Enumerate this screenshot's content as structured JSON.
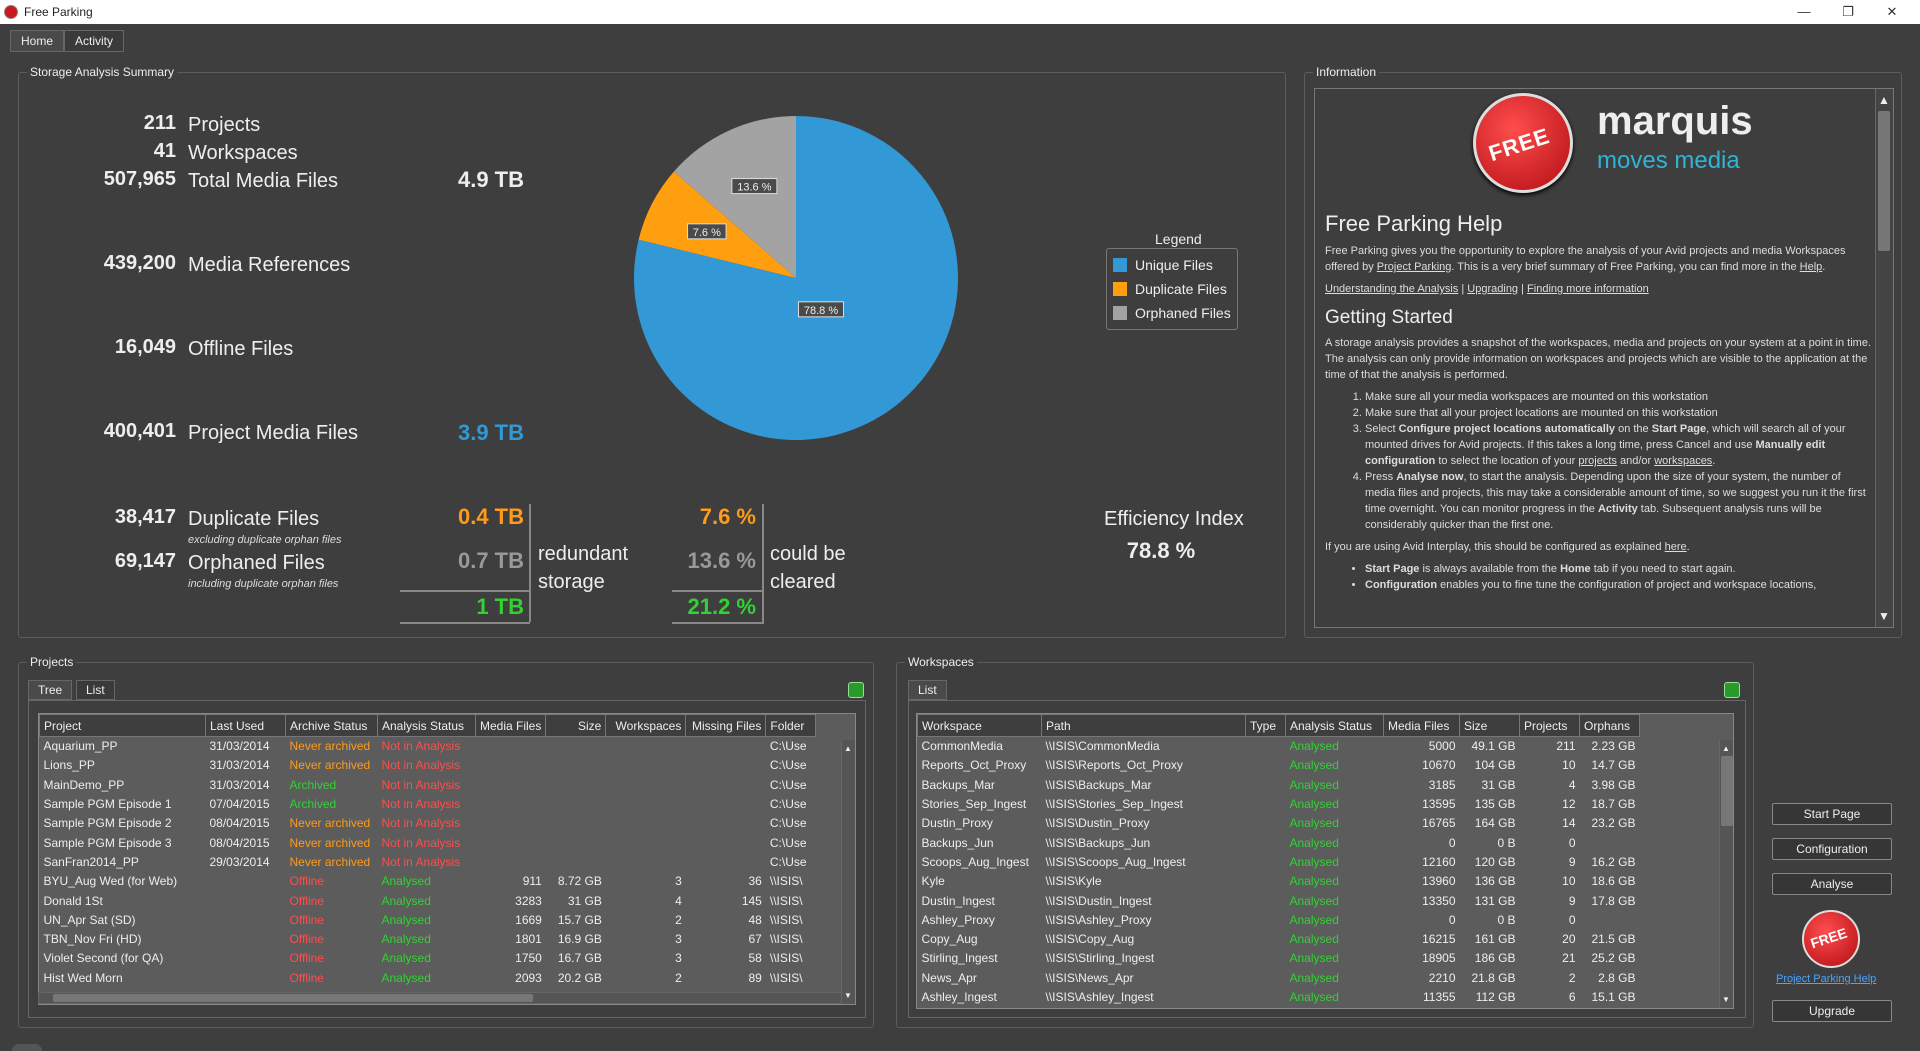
{
  "window": {
    "title": "Free Parking",
    "minimize": "—",
    "maximize": "❐",
    "close": "✕"
  },
  "tabs": [
    "Home",
    "Activity"
  ],
  "summary": {
    "group_label": "Storage Analysis Summary",
    "projects": {
      "value": "211",
      "label": "Projects"
    },
    "workspaces": {
      "value": "41",
      "label": "Workspaces"
    },
    "total_media": {
      "value": "507,965",
      "label": "Total Media Files",
      "size": "4.9 TB"
    },
    "media_refs": {
      "value": "439,200",
      "label": "Media References"
    },
    "offline": {
      "value": "16,049",
      "label": "Offline Files"
    },
    "project_media": {
      "value": "400,401",
      "label": "Project Media Files",
      "size": "3.9 TB"
    },
    "duplicate": {
      "value": "38,417",
      "label": "Duplicate Files",
      "note": "excluding duplicate orphan files",
      "size": "0.4 TB",
      "pct": "7.6 %"
    },
    "orphaned": {
      "value": "69,147",
      "label": "Orphaned Files",
      "note": "including duplicate orphan files",
      "size": "0.7 TB",
      "pct": "13.6 %"
    },
    "redundant_total": "1 TB",
    "redundant_label": "redundant storage",
    "cleared_total": "21.2 %",
    "cleared_label": "could be cleared",
    "efficiency_label": "Efficiency Index",
    "efficiency_value": "78.8 %"
  },
  "chart_data": {
    "type": "pie",
    "slices": [
      {
        "name": "Unique Files",
        "value": 78.8,
        "label": "78.8 %",
        "color": "#3399d6"
      },
      {
        "name": "Duplicate Files",
        "value": 7.6,
        "label": "7.6 %",
        "color": "#ff9e0f"
      },
      {
        "name": "Orphaned Files",
        "value": 13.6,
        "label": "13.6 %",
        "color": "#a3a3a3"
      }
    ],
    "legend_title": "Legend",
    "legend": [
      "Unique Files",
      "Duplicate Files",
      "Orphaned Files"
    ]
  },
  "info": {
    "group_label": "Information",
    "logo_badge": "FREE",
    "logo_brand": "marquis",
    "logo_tagline": "moves media",
    "help_title": "Free Parking Help",
    "intro_1": "Free Parking gives you the opportunity to explore the analysis of your Avid projects and media Workspaces offered by",
    "intro_link_1": "Project Parking",
    "intro_2": ". This is a very brief summary of Free Parking, you can find more in the",
    "intro_link_2": "Help",
    "intro_3": ".",
    "links": [
      "Understanding the Analysis",
      "Upgrading",
      "Finding more information"
    ],
    "gs_title": "Getting Started",
    "gs_text": "A storage analysis provides a snapshot of the workspaces, media and projects on your system at a point in time. The analysis can only provide information on workspaces and projects which are visible to the application at the time of that the analysis is performed.",
    "step1": "Make sure all your media workspaces are mounted on this workstation",
    "step2": "Make sure that all your project locations are mounted on this workstation",
    "step3_a": "Select",
    "step3_b": "Configure project locations automatically",
    "step3_c": "on the",
    "step3_d": "Start Page",
    "step3_e": ", which will search all of your mounted drives for Avid projects. If this takes a long time, press Cancel and use",
    "step3_f": "Manually edit configuration",
    "step3_g": "to select the location of your",
    "step3_h": "projects",
    "step3_i": "and/or",
    "step3_j": "workspaces",
    "step3_k": ".",
    "step4_a": "Press",
    "step4_b": "Analyse now",
    "step4_c": ", to start the analysis. Depending upon the size of your system, the number of media files and projects, this may take a considerable amount of time, so we suggest you run it the first time overnight. You can monitor progress in the",
    "step4_d": "Activity",
    "step4_e": "tab. Subsequent analysis runs will be considerably quicker than the first one.",
    "interplay_a": "If you are using Avid Interplay, this should be configured as explained",
    "interplay_link": "here",
    "interplay_b": ".",
    "bullet1_a": "Start Page",
    "bullet1_b": "is always available from the",
    "bullet1_c": "Home",
    "bullet1_d": "tab if you need to start again.",
    "bullet2_a": "Configuration",
    "bullet2_b": "enables you to fine tune the configuration of project and workspace locations,"
  },
  "projects": {
    "group_label": "Projects",
    "tabs": [
      "Tree",
      "List"
    ],
    "columns": [
      "Project",
      "Last Used",
      "Archive Status",
      "Analysis Status",
      "Media Files",
      "Size",
      "Workspaces",
      "Missing Files",
      "Folder"
    ],
    "rows": [
      [
        "Aquarium_PP",
        "31/03/2014",
        "Never archived",
        "Not in Analysis",
        "",
        "",
        "",
        "",
        "C:\\Use"
      ],
      [
        "Lions_PP",
        "31/03/2014",
        "Never archived",
        "Not in Analysis",
        "",
        "",
        "",
        "",
        "C:\\Use"
      ],
      [
        "MainDemo_PP",
        "31/03/2014",
        "Archived",
        "Not in Analysis",
        "",
        "",
        "",
        "",
        "C:\\Use"
      ],
      [
        "Sample PGM Episode 1",
        "07/04/2015",
        "Archived",
        "Not in Analysis",
        "",
        "",
        "",
        "",
        "C:\\Use"
      ],
      [
        "Sample PGM Episode 2",
        "08/04/2015",
        "Never archived",
        "Not in Analysis",
        "",
        "",
        "",
        "",
        "C:\\Use"
      ],
      [
        "Sample PGM Episode 3",
        "08/04/2015",
        "Never archived",
        "Not in Analysis",
        "",
        "",
        "",
        "",
        "C:\\Use"
      ],
      [
        "SanFran2014_PP",
        "29/03/2014",
        "Never archived",
        "Not in Analysis",
        "",
        "",
        "",
        "",
        "C:\\Use"
      ],
      [
        "BYU_Aug Wed (for Web)",
        "",
        "Offline",
        "Analysed",
        "911",
        "8.72 GB",
        "3",
        "36",
        "\\\\ISIS\\"
      ],
      [
        "Donald 1St",
        "",
        "Offline",
        "Analysed",
        "3283",
        "31 GB",
        "4",
        "145",
        "\\\\ISIS\\"
      ],
      [
        "UN_Apr Sat (SD)",
        "",
        "Offline",
        "Analysed",
        "1669",
        "15.7 GB",
        "2",
        "48",
        "\\\\ISIS\\"
      ],
      [
        "TBN_Nov Fri (HD)",
        "",
        "Offline",
        "Analysed",
        "1801",
        "16.9 GB",
        "3",
        "67",
        "\\\\ISIS\\"
      ],
      [
        "Violet Second (for QA)",
        "",
        "Offline",
        "Analysed",
        "1750",
        "16.7 GB",
        "3",
        "58",
        "\\\\ISIS\\"
      ],
      [
        "Hist Wed Morn",
        "",
        "Offline",
        "Analysed",
        "2093",
        "20.2 GB",
        "2",
        "89",
        "\\\\ISIS\\"
      ]
    ]
  },
  "workspaces": {
    "group_label": "Workspaces",
    "tabs": [
      "List"
    ],
    "columns": [
      "Workspace",
      "Path",
      "Type",
      "Analysis Status",
      "Media Files",
      "Size",
      "Projects",
      "Orphans"
    ],
    "rows": [
      [
        "CommonMedia",
        "\\\\ISIS\\CommonMedia",
        "",
        "Analysed",
        "5000",
        "49.1 GB",
        "211",
        "2.23 GB"
      ],
      [
        "Reports_Oct_Proxy",
        "\\\\ISIS\\Reports_Oct_Proxy",
        "",
        "Analysed",
        "10670",
        "104 GB",
        "10",
        "14.7 GB"
      ],
      [
        "Backups_Mar",
        "\\\\ISIS\\Backups_Mar",
        "",
        "Analysed",
        "3185",
        "31 GB",
        "4",
        "3.98 GB"
      ],
      [
        "Stories_Sep_Ingest",
        "\\\\ISIS\\Stories_Sep_Ingest",
        "",
        "Analysed",
        "13595",
        "135 GB",
        "12",
        "18.7 GB"
      ],
      [
        "Dustin_Proxy",
        "\\\\ISIS\\Dustin_Proxy",
        "",
        "Analysed",
        "16765",
        "164 GB",
        "14",
        "23.2 GB"
      ],
      [
        "Backups_Jun",
        "\\\\ISIS\\Backups_Jun",
        "",
        "Analysed",
        "0",
        "0 B",
        "0",
        ""
      ],
      [
        "Scoops_Aug_Ingest",
        "\\\\ISIS\\Scoops_Aug_Ingest",
        "",
        "Analysed",
        "12160",
        "120 GB",
        "9",
        "16.2 GB"
      ],
      [
        "Kyle",
        "\\\\ISIS\\Kyle",
        "",
        "Analysed",
        "13960",
        "136 GB",
        "10",
        "18.6 GB"
      ],
      [
        "Dustin_Ingest",
        "\\\\ISIS\\Dustin_Ingest",
        "",
        "Analysed",
        "13350",
        "131 GB",
        "9",
        "17.8 GB"
      ],
      [
        "Ashley_Proxy",
        "\\\\ISIS\\Ashley_Proxy",
        "",
        "Analysed",
        "0",
        "0 B",
        "0",
        ""
      ],
      [
        "Copy_Aug",
        "\\\\ISIS\\Copy_Aug",
        "",
        "Analysed",
        "16215",
        "161 GB",
        "20",
        "21.5 GB"
      ],
      [
        "Stirling_Ingest",
        "\\\\ISIS\\Stirling_Ingest",
        "",
        "Analysed",
        "18905",
        "186 GB",
        "21",
        "25.2 GB"
      ],
      [
        "News_Apr",
        "\\\\ISIS\\News_Apr",
        "",
        "Analysed",
        "2210",
        "21.8 GB",
        "2",
        "2.8 GB"
      ],
      [
        "Ashley_Ingest",
        "\\\\ISIS\\Ashley_Ingest",
        "",
        "Analysed",
        "11355",
        "112 GB",
        "6",
        "15.1 GB"
      ]
    ]
  },
  "side": {
    "start_page": "Start Page",
    "configuration": "Configuration",
    "analyse": "Analyse",
    "badge": "FREE",
    "help_link": "Project Parking Help",
    "upgrade": "Upgrade"
  }
}
